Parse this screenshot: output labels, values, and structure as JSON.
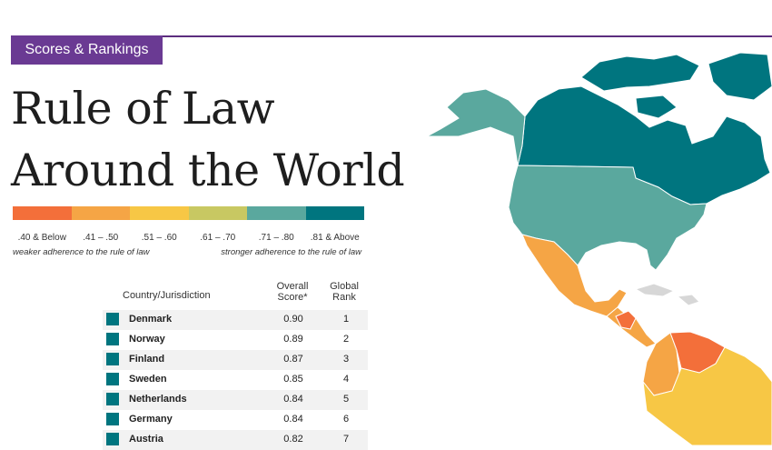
{
  "badge": "Scores & Rankings",
  "title": {
    "line1": "Rule of Law",
    "line2": "Around the World"
  },
  "legend": {
    "colors": [
      "#f36f3a",
      "#f5a545",
      "#f7c745",
      "#c8c862",
      "#5aa89e",
      "#00757f"
    ],
    "labels": [
      ".40 & Below",
      ".41 – .50",
      ".51 – .60",
      ".61 – .70",
      ".71 – .80",
      ".81 & Above"
    ],
    "weak_note": "weaker adherence to the rule of law",
    "strong_note": "stronger adherence to the rule of law"
  },
  "table": {
    "col_country": "Country/Jurisdiction",
    "col_score_1": "Overall",
    "col_score_2": "Score*",
    "col_rank_1": "Global",
    "col_rank_2": "Rank",
    "rows": [
      {
        "country": "Denmark",
        "score": "0.90",
        "rank": "1"
      },
      {
        "country": "Norway",
        "score": "0.89",
        "rank": "2"
      },
      {
        "country": "Finland",
        "score": "0.87",
        "rank": "3"
      },
      {
        "country": "Sweden",
        "score": "0.85",
        "rank": "4"
      },
      {
        "country": "Netherlands",
        "score": "0.84",
        "rank": "5"
      },
      {
        "country": "Germany",
        "score": "0.84",
        "rank": "6"
      },
      {
        "country": "Austria",
        "score": "0.82",
        "rank": "7"
      }
    ]
  },
  "map": {
    "region_colors": {
      "canada": "#00757f",
      "alaska": "#5aa89e",
      "usa": "#5aa89e",
      "mexico": "#f5a545",
      "central_america": "#f5a545",
      "honduras": "#f36f3a",
      "caribbean": "#d7d7d7",
      "colombia": "#f5a545",
      "venezuela": "#f36f3a",
      "south_america": "#f7c745"
    }
  }
}
